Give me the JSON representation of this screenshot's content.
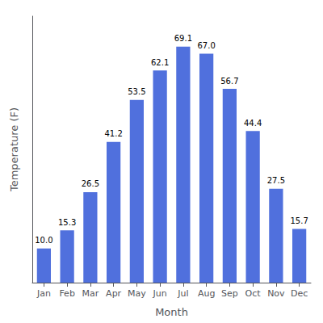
{
  "chart_data": {
    "type": "bar",
    "categories": [
      "Jan",
      "Feb",
      "Mar",
      "Apr",
      "May",
      "Jun",
      "Jul",
      "Aug",
      "Sep",
      "Oct",
      "Nov",
      "Dec"
    ],
    "values": [
      10.0,
      15.3,
      26.5,
      41.2,
      53.5,
      62.1,
      69.1,
      67.0,
      56.7,
      44.4,
      27.5,
      15.7
    ],
    "value_labels": [
      "10.0",
      "15.3",
      "26.5",
      "41.2",
      "53.5",
      "62.1",
      "69.1",
      "67.0",
      "56.7",
      "44.4",
      "27.5",
      "15.7"
    ],
    "data_labels": true,
    "xlabel": "Month",
    "ylabel": "Temperature (F)",
    "ylim": [
      0,
      78
    ],
    "yticks": [],
    "tick_labels": "x",
    "grid": false
  }
}
